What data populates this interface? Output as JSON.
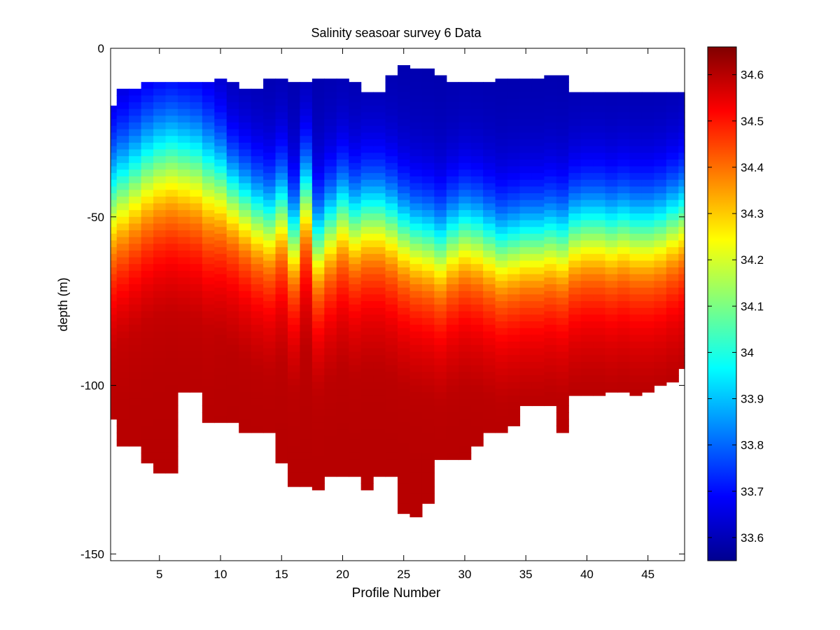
{
  "chart_data": {
    "type": "heatmap",
    "title": "Salinity seasoar survey 6 Data",
    "xlabel": "Profile Number",
    "ylabel": "depth (m)",
    "xlim": [
      1,
      48
    ],
    "ylim": [
      -152,
      0
    ],
    "xticks": [
      5,
      10,
      15,
      20,
      25,
      30,
      35,
      40,
      45
    ],
    "yticks": [
      0,
      -50,
      -100,
      -150
    ],
    "colormap": "jet",
    "clim": [
      33.55,
      34.66
    ],
    "colorbar_ticks": [
      33.6,
      33.7,
      33.8,
      33.9,
      34,
      34.1,
      34.2,
      34.3,
      34.4,
      34.5,
      34.6
    ],
    "profiles": [
      {
        "x": 1,
        "top": -17,
        "bottom": -110,
        "halocline": -45,
        "width": 11
      },
      {
        "x": 2,
        "top": -12,
        "bottom": -118,
        "halocline": -42,
        "width": 11
      },
      {
        "x": 3,
        "top": -12,
        "bottom": -118,
        "halocline": -39,
        "width": 11
      },
      {
        "x": 4,
        "top": -10,
        "bottom": -123,
        "halocline": -36,
        "width": 11
      },
      {
        "x": 5,
        "top": -10,
        "bottom": -126,
        "halocline": -34,
        "width": 11
      },
      {
        "x": 6,
        "top": -10,
        "bottom": -126,
        "halocline": -33,
        "width": 11
      },
      {
        "x": 7,
        "top": -10,
        "bottom": -102,
        "halocline": -34,
        "width": 11
      },
      {
        "x": 8,
        "top": -10,
        "bottom": -102,
        "halocline": -35,
        "width": 11
      },
      {
        "x": 9,
        "top": -10,
        "bottom": -111,
        "halocline": -38,
        "width": 11
      },
      {
        "x": 10,
        "top": -9,
        "bottom": -111,
        "halocline": -40,
        "width": 10
      },
      {
        "x": 11,
        "top": -10,
        "bottom": -111,
        "halocline": -44,
        "width": 9
      },
      {
        "x": 12,
        "top": -12,
        "bottom": -114,
        "halocline": -47,
        "width": 9
      },
      {
        "x": 13,
        "top": -12,
        "bottom": -114,
        "halocline": -50,
        "width": 9
      },
      {
        "x": 14,
        "top": -9,
        "bottom": -114,
        "halocline": -52,
        "width": 9
      },
      {
        "x": 15,
        "top": -9,
        "bottom": -123,
        "halocline": -48,
        "width": 9
      },
      {
        "x": 16,
        "top": -10,
        "bottom": -130,
        "halocline": -56,
        "width": 9
      },
      {
        "x": 17,
        "top": -10,
        "bottom": -130,
        "halocline": -44,
        "width": 9
      },
      {
        "x": 18,
        "top": -9,
        "bottom": -131,
        "halocline": -58,
        "width": 9
      },
      {
        "x": 19,
        "top": -9,
        "bottom": -127,
        "halocline": -53,
        "width": 9
      },
      {
        "x": 20,
        "top": -9,
        "bottom": -127,
        "halocline": -49,
        "width": 9
      },
      {
        "x": 21,
        "top": -10,
        "bottom": -127,
        "halocline": -52,
        "width": 9
      },
      {
        "x": 22,
        "top": -13,
        "bottom": -131,
        "halocline": -50,
        "width": 9
      },
      {
        "x": 23,
        "top": -13,
        "bottom": -127,
        "halocline": -50,
        "width": 9
      },
      {
        "x": 24,
        "top": -8,
        "bottom": -127,
        "halocline": -52,
        "width": 9
      },
      {
        "x": 25,
        "top": -5,
        "bottom": -138,
        "halocline": -55,
        "width": 9
      },
      {
        "x": 26,
        "top": -6,
        "bottom": -139,
        "halocline": -57,
        "width": 9
      },
      {
        "x": 27,
        "top": -6,
        "bottom": -135,
        "halocline": -58,
        "width": 9
      },
      {
        "x": 28,
        "top": -8,
        "bottom": -122,
        "halocline": -60,
        "width": 9
      },
      {
        "x": 29,
        "top": -10,
        "bottom": -122,
        "halocline": -57,
        "width": 9
      },
      {
        "x": 30,
        "top": -10,
        "bottom": -122,
        "halocline": -55,
        "width": 9
      },
      {
        "x": 31,
        "top": -10,
        "bottom": -118,
        "halocline": -56,
        "width": 9
      },
      {
        "x": 32,
        "top": -10,
        "bottom": -114,
        "halocline": -58,
        "width": 9
      },
      {
        "x": 33,
        "top": -9,
        "bottom": -114,
        "halocline": -60,
        "width": 9
      },
      {
        "x": 34,
        "top": -9,
        "bottom": -112,
        "halocline": -59,
        "width": 9
      },
      {
        "x": 35,
        "top": -9,
        "bottom": -106,
        "halocline": -58,
        "width": 9
      },
      {
        "x": 36,
        "top": -9,
        "bottom": -106,
        "halocline": -58,
        "width": 9
      },
      {
        "x": 37,
        "top": -8,
        "bottom": -106,
        "halocline": -57,
        "width": 9
      },
      {
        "x": 38,
        "top": -8,
        "bottom": -114,
        "halocline": -58,
        "width": 9
      },
      {
        "x": 39,
        "top": -13,
        "bottom": -103,
        "halocline": -55,
        "width": 9
      },
      {
        "x": 40,
        "top": -13,
        "bottom": -103,
        "halocline": -54,
        "width": 9
      },
      {
        "x": 41,
        "top": -13,
        "bottom": -103,
        "halocline": -54,
        "width": 9
      },
      {
        "x": 42,
        "top": -13,
        "bottom": -102,
        "halocline": -55,
        "width": 9
      },
      {
        "x": 43,
        "top": -13,
        "bottom": -102,
        "halocline": -54,
        "width": 9
      },
      {
        "x": 44,
        "top": -13,
        "bottom": -103,
        "halocline": -55,
        "width": 9
      },
      {
        "x": 45,
        "top": -13,
        "bottom": -102,
        "halocline": -55,
        "width": 9
      },
      {
        "x": 46,
        "top": -13,
        "bottom": -100,
        "halocline": -54,
        "width": 9
      },
      {
        "x": 47,
        "top": -13,
        "bottom": -99,
        "halocline": -52,
        "width": 9
      },
      {
        "x": 48,
        "top": -13,
        "bottom": -95,
        "halocline": -50,
        "width": 9
      }
    ],
    "surface_salinity": 33.6,
    "deep_salinity": 34.56
  }
}
